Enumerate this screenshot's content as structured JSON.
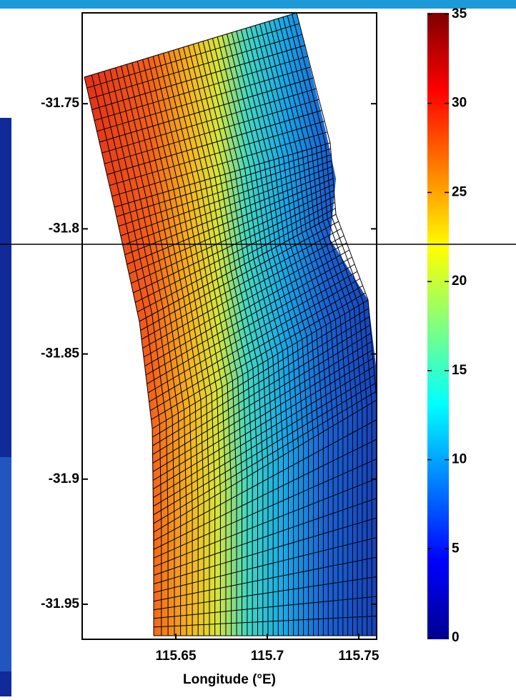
{
  "chart_data": {
    "type": "heatmap",
    "xlabel": "Longitude (°E)",
    "xlim": [
      115.5988,
      115.7598
    ],
    "xticks": [
      115.65,
      115.7,
      115.75
    ],
    "ylim": [
      -31.964,
      -31.7137
    ],
    "yticks": [
      -31.95,
      -31.9,
      -31.85,
      -31.8,
      -31.75
    ],
    "colorbar": {
      "lim": [
        0,
        35
      ],
      "ticks": [
        0,
        5,
        10,
        15,
        20,
        25,
        30,
        35
      ],
      "colormap": "jet"
    }
  }
}
